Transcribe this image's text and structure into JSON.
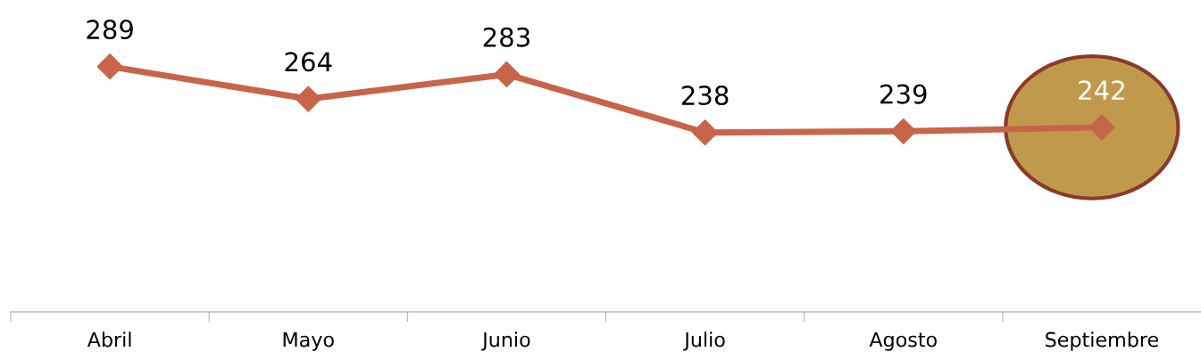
{
  "chart_data": {
    "type": "line",
    "categories": [
      "Abril",
      "Mayo",
      "Junio",
      "Julio",
      "Agosto",
      "Septiembre"
    ],
    "series": [
      {
        "color": "#c8644a",
        "values": [
          289,
          264,
          283,
          238,
          239,
          242
        ]
      }
    ],
    "data_labels": true,
    "marker": "diamond",
    "line_style": "solid",
    "grid": false,
    "legend": false,
    "tick_labels": "x"
  }
}
